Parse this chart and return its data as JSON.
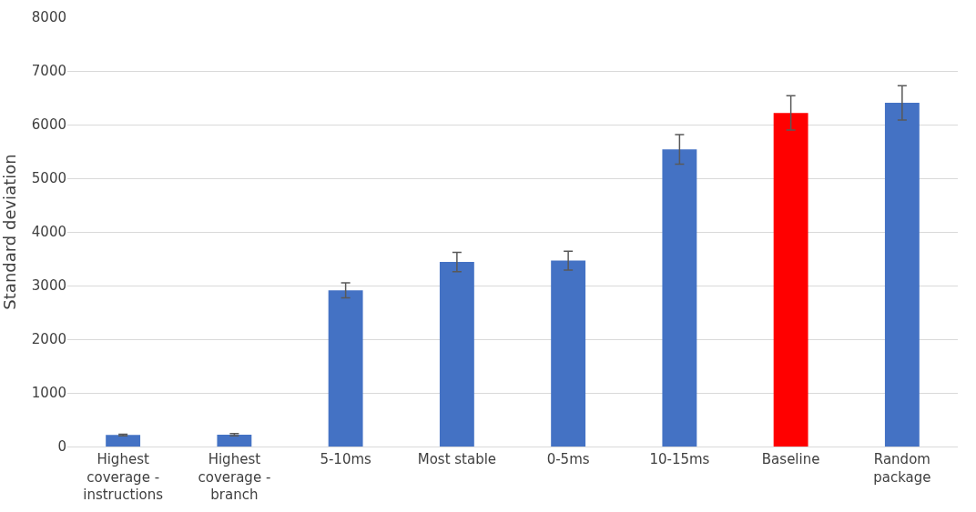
{
  "chart_data": {
    "type": "bar",
    "ylabel": "Standard deviation",
    "categories": [
      "Highest coverage - instructions",
      "Highest coverage - branch",
      "5-10ms",
      "Most stable",
      "0-5ms",
      "10-15ms",
      "Baseline",
      "Random package"
    ],
    "values": [
      214,
      220,
      2910,
      3440,
      3465,
      5537,
      6217,
      6406
    ],
    "errors": [
      15,
      20,
      140,
      180,
      175,
      275,
      320,
      320
    ],
    "colors": [
      "#4472c4",
      "#4472c4",
      "#4472c4",
      "#4472c4",
      "#4472c4",
      "#4472c4",
      "#ff0000",
      "#4472c4"
    ],
    "ylim": [
      0,
      8000
    ],
    "yticks": [
      0,
      1000,
      2000,
      3000,
      4000,
      5000,
      6000,
      7000,
      8000
    ],
    "grid": "y",
    "legend": false
  }
}
